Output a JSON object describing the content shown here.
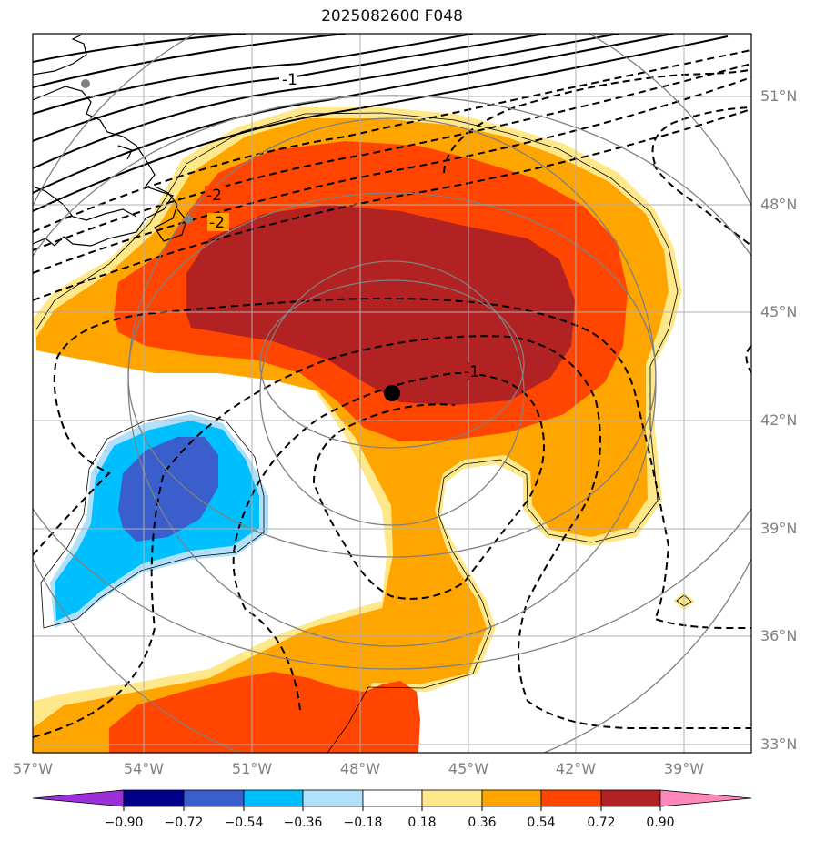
{
  "title": "2025082600 F048",
  "lat_labels": [
    "51°N",
    "48°N",
    "45°N",
    "42°N",
    "39°N",
    "36°N",
    "33°N"
  ],
  "lon_labels": [
    "57°W",
    "54°W",
    "51°W",
    "48°W",
    "45°W",
    "42°W",
    "39°W"
  ],
  "contour_labels": [
    "-1",
    "-2",
    "-2",
    "-1"
  ],
  "colorbar": {
    "tick_labels": [
      "−0.90",
      "−0.72",
      "−0.54",
      "−0.36",
      "−0.18",
      "0.18",
      "0.36",
      "0.54",
      "0.72",
      "0.90"
    ],
    "colors": [
      "#9b30d9",
      "#00008b",
      "#3a5fcd",
      "#00bfff",
      "#b0e0fa",
      "#ffffff",
      "#ffe88a",
      "#ffa500",
      "#ff4500",
      "#b22222",
      "#ff88bb"
    ]
  },
  "fill_colors": {
    "light_yellow": "#ffe88a",
    "orange": "#ffa500",
    "red_orange": "#ff4500",
    "dark_red": "#b22222",
    "light_blue": "#b0e0fa",
    "deep_sky_blue": "#00bfff",
    "royal_blue": "#3a5fcd"
  },
  "center_marker": {
    "color": "#000000"
  },
  "station_markers": {
    "color": "#808080"
  }
}
